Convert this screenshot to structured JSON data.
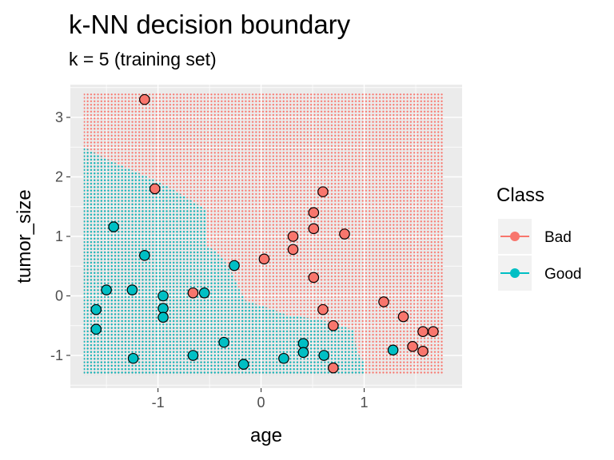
{
  "chart_data": {
    "type": "scatter",
    "title": "k-NN decision boundary",
    "subtitle": "k = 5 (training set)",
    "xlabel": "age",
    "ylabel": "tumor_size",
    "xlim": [
      -1.85,
      1.95
    ],
    "ylim": [
      -1.55,
      3.55
    ],
    "xticks": [
      -1,
      0,
      1
    ],
    "yticks": [
      -1,
      0,
      1,
      2,
      3
    ],
    "grid": true,
    "legend": {
      "title": "Class",
      "position": "right",
      "entries": [
        "Bad",
        "Good"
      ]
    },
    "colors": {
      "Bad": "#F8766D",
      "Good": "#00BFC4"
    },
    "boundary": [
      [
        -1.72,
        2.5
      ],
      [
        -1.5,
        2.3
      ],
      [
        -1.3,
        2.15
      ],
      [
        -1.1,
        2.0
      ],
      [
        -0.92,
        1.85
      ],
      [
        -0.75,
        1.68
      ],
      [
        -0.6,
        1.52
      ],
      [
        -0.53,
        1.45
      ],
      [
        -0.53,
        0.85
      ],
      [
        -0.4,
        0.7
      ],
      [
        -0.3,
        0.45
      ],
      [
        -0.22,
        0.15
      ],
      [
        -0.15,
        -0.08
      ],
      [
        0.1,
        -0.22
      ],
      [
        0.25,
        -0.32
      ],
      [
        0.5,
        -0.38
      ],
      [
        0.7,
        -0.45
      ],
      [
        0.9,
        -0.58
      ],
      [
        0.93,
        -0.95
      ],
      [
        1.0,
        -1.1
      ],
      [
        1.0,
        -1.33
      ]
    ],
    "region_x": [
      -1.72,
      1.77
    ],
    "region_y": [
      -1.33,
      3.4
    ],
    "series": [
      {
        "name": "Bad",
        "x": [
          -1.13,
          -1.03,
          -0.66,
          0.03,
          0.31,
          0.31,
          0.51,
          0.51,
          0.51,
          0.6,
          0.6,
          0.7,
          0.7,
          0.81,
          1.19,
          1.38,
          1.47,
          1.57,
          1.57,
          1.67
        ],
        "y": [
          3.3,
          1.8,
          0.05,
          0.62,
          1.0,
          0.78,
          1.4,
          1.13,
          0.31,
          1.75,
          -0.23,
          -0.5,
          -1.21,
          1.04,
          -0.1,
          -0.35,
          -0.85,
          -0.6,
          -0.93,
          -0.6
        ]
      },
      {
        "name": "Good",
        "x": [
          -1.6,
          -1.6,
          -1.5,
          -1.43,
          -1.25,
          -1.24,
          -1.13,
          -0.95,
          -0.95,
          -0.95,
          -0.66,
          -0.55,
          -0.36,
          -0.26,
          -0.17,
          0.22,
          0.41,
          0.41,
          0.61,
          1.28
        ],
        "y": [
          -0.23,
          -0.56,
          0.1,
          1.16,
          0.1,
          -1.05,
          0.68,
          0.0,
          -0.21,
          -0.36,
          -1.0,
          0.05,
          -0.78,
          0.51,
          -1.15,
          -1.05,
          -0.8,
          -0.95,
          -1.0,
          -0.91
        ]
      }
    ]
  }
}
